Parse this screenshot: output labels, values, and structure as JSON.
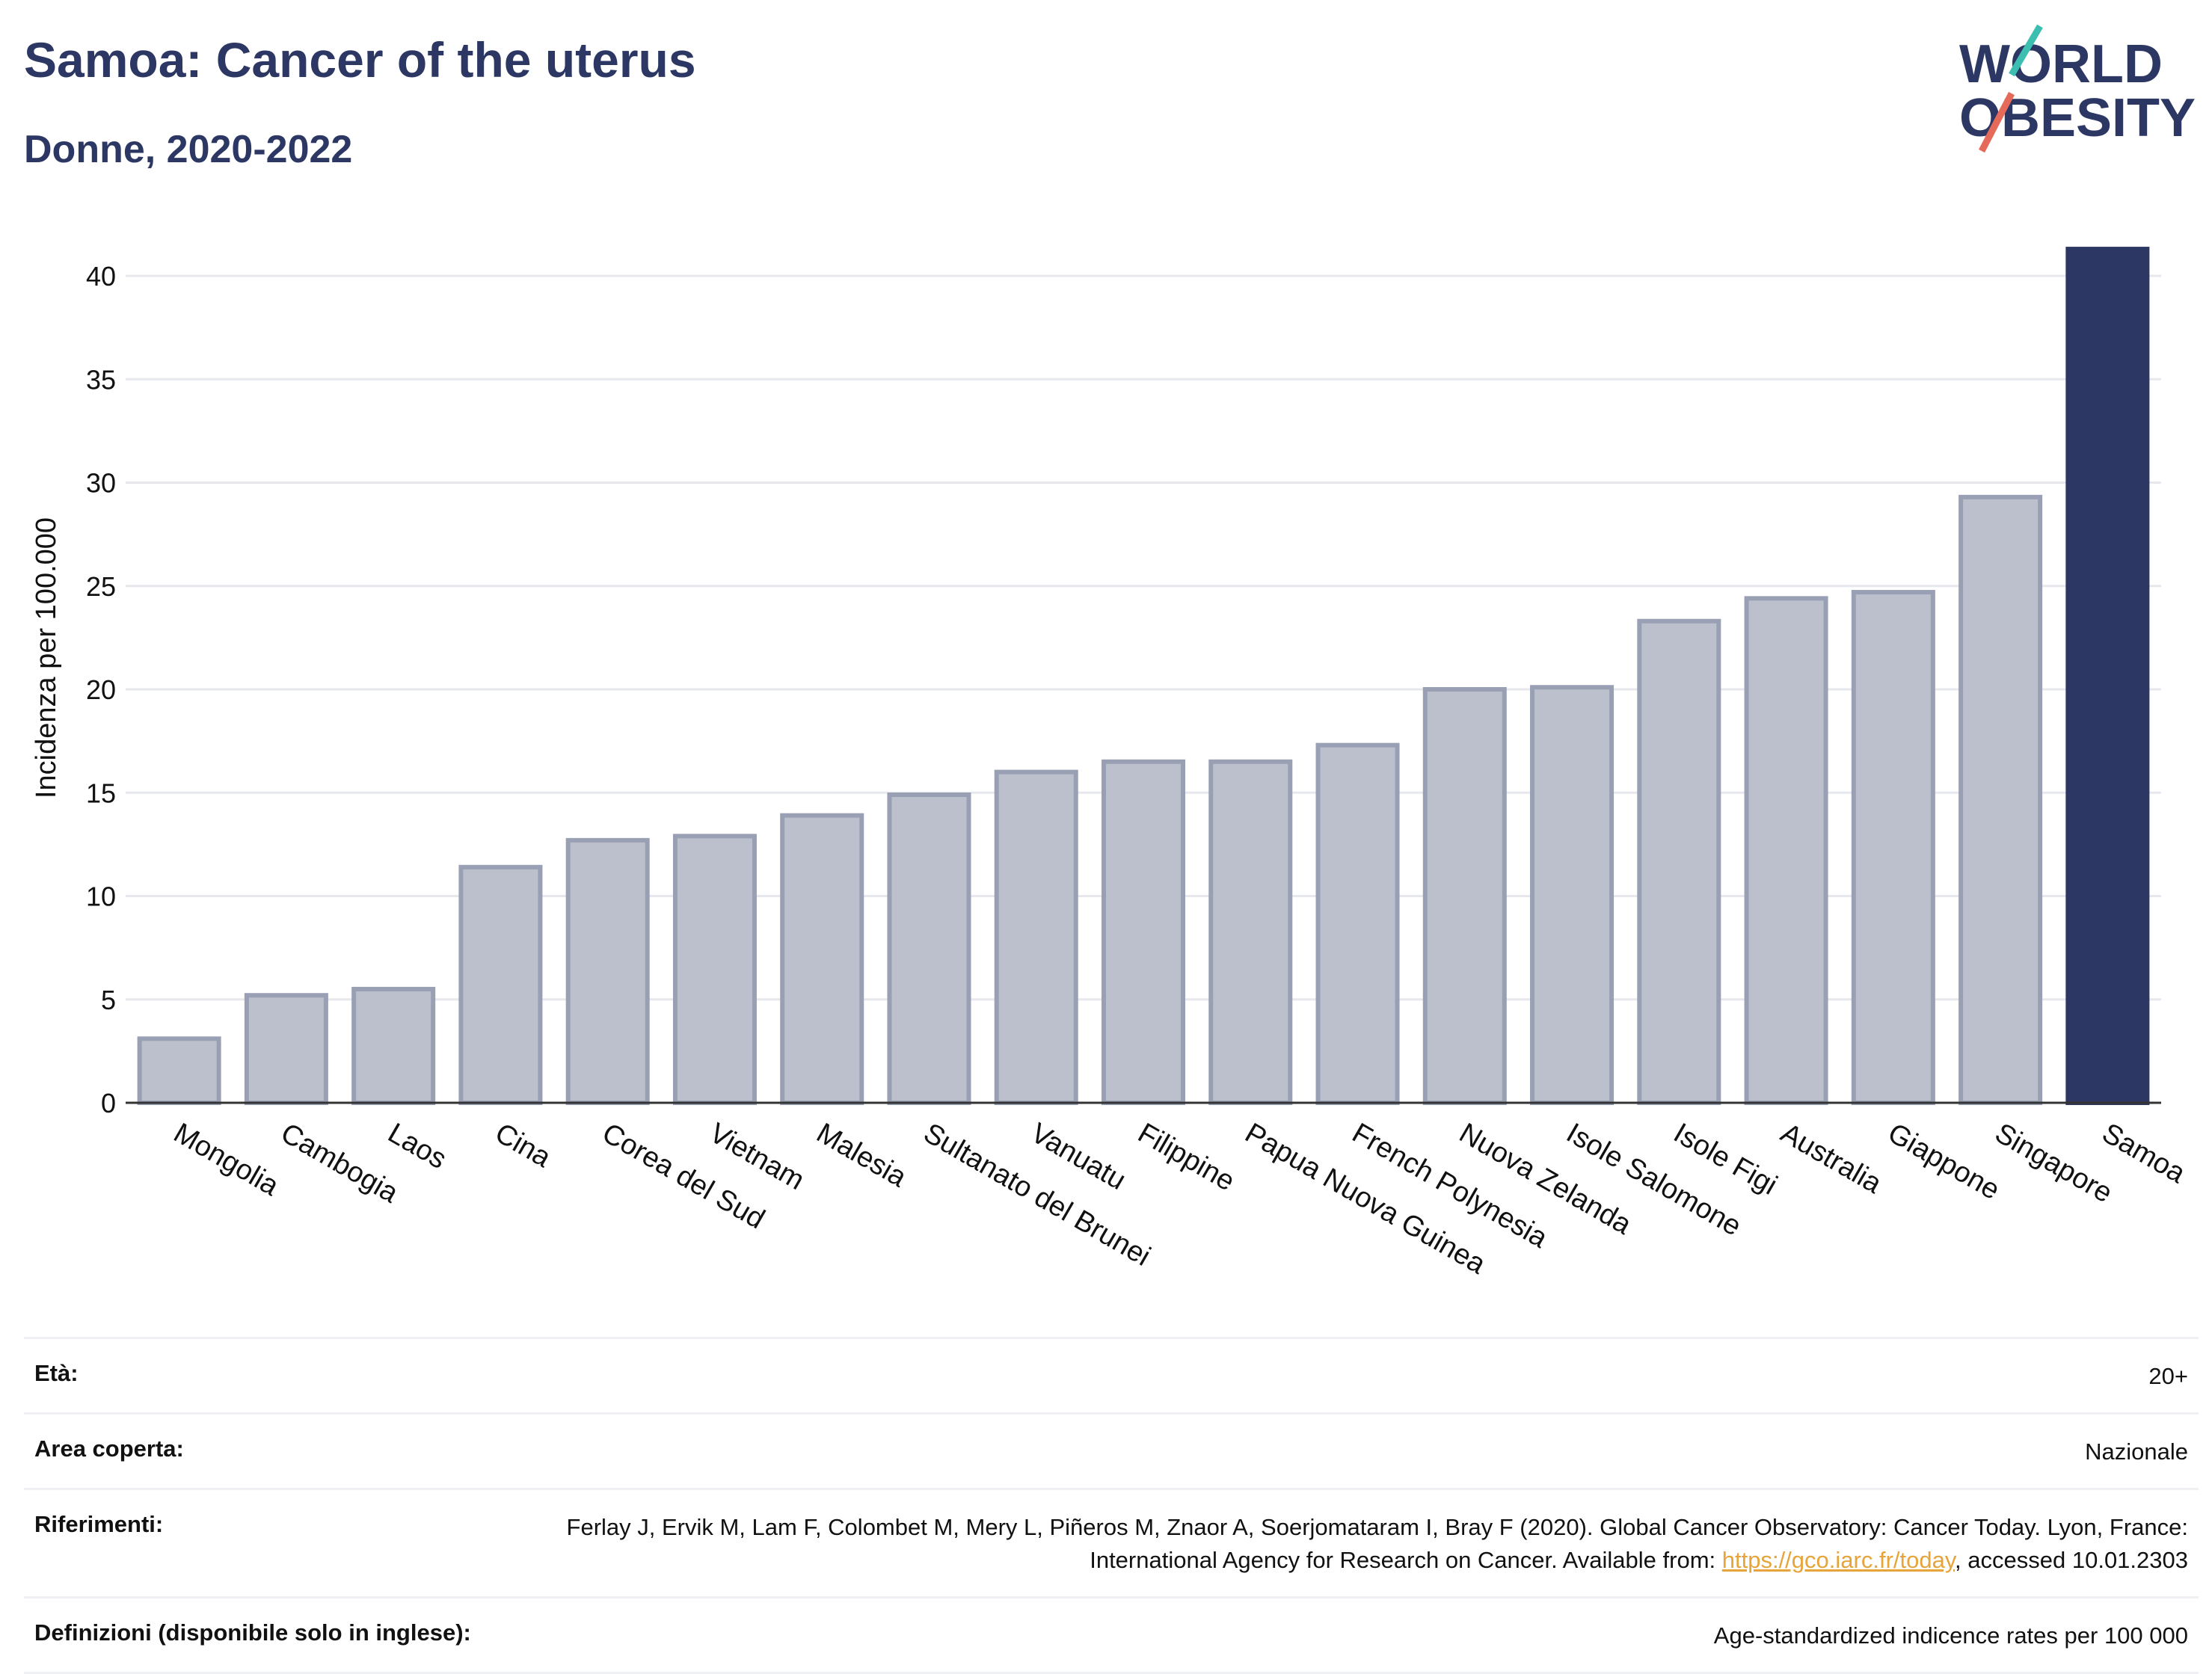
{
  "header": {
    "title": "Samoa: Cancer of the uterus",
    "subtitle": "Donne, 2020-2022"
  },
  "logo": {
    "line1": "WORLD",
    "line2": "OBESITY"
  },
  "colors": {
    "bar": "#bcc0cd",
    "bar_border": "#9aa0b4",
    "highlight": "#2c3764",
    "grid": "#e6e8ee",
    "title": "#2c3764",
    "link": "#e6a43a"
  },
  "chart_data": {
    "type": "bar",
    "title": "Samoa: Cancer of the uterus",
    "subtitle": "Donne, 2020-2022",
    "xlabel": "",
    "ylabel": "Incidenza per 100.000",
    "ylim": [
      0,
      42
    ],
    "yticks": [
      0,
      5,
      10,
      15,
      20,
      25,
      30,
      35,
      40
    ],
    "grid": true,
    "highlight_category": "Samoa",
    "categories": [
      "Mongolia",
      "Cambogia",
      "Laos",
      "Cina",
      "Corea del Sud",
      "Vietnam",
      "Malesia",
      "Sultanato del Brunei",
      "Vanuatu",
      "Filippine",
      "Papua Nuova Guinea",
      "French Polynesia",
      "Nuova Zelanda",
      "Isole Salomone",
      "Isole Figi",
      "Australia",
      "Giappone",
      "Singapore",
      "Samoa"
    ],
    "values": [
      3.1,
      5.2,
      5.5,
      11.4,
      12.7,
      12.9,
      13.9,
      14.9,
      16.0,
      16.5,
      16.5,
      17.3,
      20.0,
      20.1,
      23.3,
      24.4,
      24.7,
      29.3,
      41.3
    ]
  },
  "info": {
    "age_label": "Età:",
    "age_value": "20+",
    "area_label": "Area coperta:",
    "area_value": "Nazionale",
    "refs_label": "Riferimenti:",
    "refs_text_1": "Ferlay J, Ervik M, Lam F, Colombet M, Mery L, Piñeros M, Znaor A, Soerjomataram I, Bray F (2020). Global Cancer Observatory: Cancer Today. Lyon, France: International Agency for Research on Cancer. Available from: ",
    "refs_link": "https://gco.iarc.fr/today",
    "refs_text_2": ", accessed 10.01.2303",
    "defs_label": "Definizioni (disponibile solo in inglese):",
    "defs_value": "Age-standardized indicence rates per 100 000"
  }
}
